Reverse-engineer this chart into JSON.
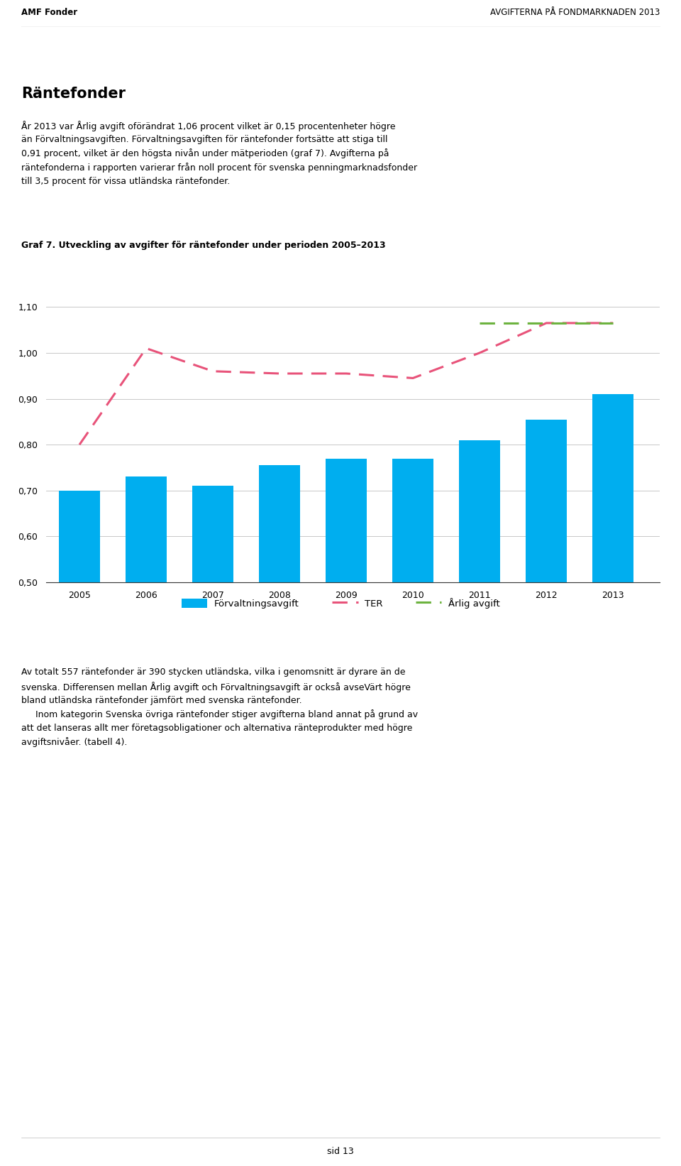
{
  "years": [
    2005,
    2006,
    2007,
    2008,
    2009,
    2010,
    2011,
    2012,
    2013
  ],
  "forvaltningsavgift": [
    0.7,
    0.73,
    0.71,
    0.755,
    0.77,
    0.77,
    0.81,
    0.855,
    0.91
  ],
  "ter": [
    0.8,
    1.01,
    0.96,
    0.955,
    0.955,
    0.945,
    1.0,
    1.065,
    1.065
  ],
  "arlig_avgift": [
    null,
    null,
    null,
    null,
    null,
    null,
    1.065,
    1.065,
    1.065
  ],
  "bar_color": "#00AEEF",
  "ter_color": "#E8537A",
  "arlig_color": "#6DB33F",
  "ylim": [
    0.5,
    1.15
  ],
  "yticks": [
    0.5,
    0.6,
    0.7,
    0.8,
    0.9,
    1.0,
    1.1
  ],
  "title": "Graf 7. Utveckling av avgifter för räntefonder under perioden 2005–2013",
  "header_left": "AMF Fonder",
  "header_right": "AVGIFTERNA PÅ FONDMARKNADEN 2013",
  "section_title": "Räntefonder",
  "section_text": "År 2013 var Årlig avgift oförändrat 1,06 procent vilket är 0,15 procentenheter högre\nän Förvaltningsavgiften. Förvaltningsavgiften för räntefonder fortsätte att stiga till\n0,91 procent, vilket är den högsta nivån under mätperioden (graf 7). Avgifterna på\nräntefonderna i rapporten varierar från noll procent för svenska penningmarknadsfonder\ntill 3,5 procent för vissa utländska räntefonder.",
  "footer_text": "Av totalt 557 räntefonder är 390 stycken utländska, vilka i genomsnitt är dyrare än de\nsvenska. Differensen mellan Årlig avgift och Förvaltningsavgift är också avseVärt högre\nbland utländska räntefonder jämfört med svenska räntefonder.\n     Inom kategorin Svenska övriga räntefonder stiger avgifterna bland annat på grund av\natt det lanseras allt mer företagsobligationer och alternativa ränteprodukter med högre\navgiftsnivåer. (tabell 4).",
  "page_number": "sid 13",
  "legend_forvaltning": "Förvaltningsavgift",
  "legend_ter": "TER",
  "legend_arlig": "Årlig avgift"
}
